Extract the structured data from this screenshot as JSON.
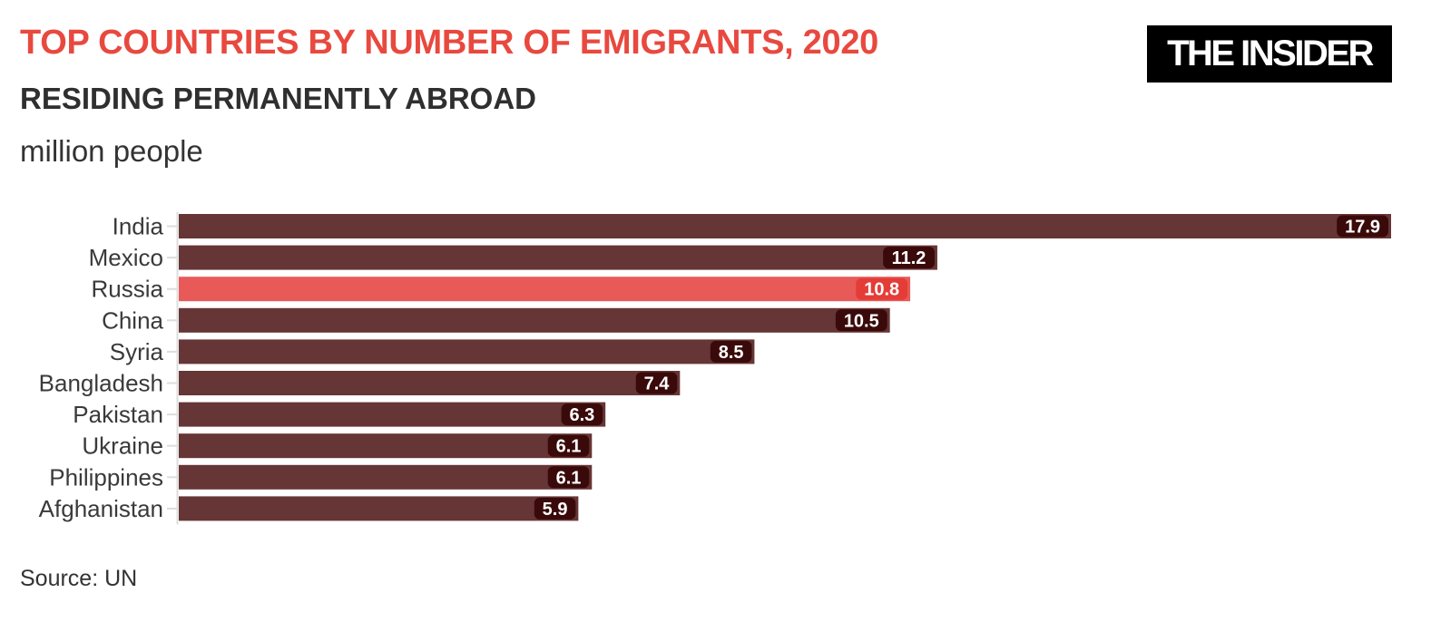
{
  "header": {
    "title": "TOP COUNTRIES BY NUMBER OF EMIGRANTS, 2020",
    "subtitle": "RESIDING PERMANENTLY ABROAD",
    "unit": "million people"
  },
  "logo": {
    "text": "THE INSIDER"
  },
  "footer": {
    "source": "Source: UN"
  },
  "colors": {
    "title": "#e8493f",
    "bar": "#663535",
    "highlight_bar": "#e85a58",
    "label_bg": "#3a0a0a",
    "highlight_label_bg": "#e43c37",
    "axis_line": "#dddddd",
    "category_text": "#3a3a3a"
  },
  "chart_data": {
    "type": "bar",
    "orientation": "horizontal",
    "categories": [
      "India",
      "Mexico",
      "Russia",
      "China",
      "Syria",
      "Bangladesh",
      "Pakistan",
      "Ukraine",
      "Philippines",
      "Afghanistan"
    ],
    "values": [
      17.9,
      11.2,
      10.8,
      10.5,
      8.5,
      7.4,
      6.3,
      6.1,
      6.1,
      5.9
    ],
    "value_labels": [
      "17.9",
      "11.2",
      "10.8",
      "10.5",
      "8.5",
      "7.4",
      "6.3",
      "6.1",
      "6.1",
      "5.9"
    ],
    "highlight": "Russia",
    "xlim": [
      0,
      17.9
    ],
    "grid": false,
    "legend": false
  }
}
